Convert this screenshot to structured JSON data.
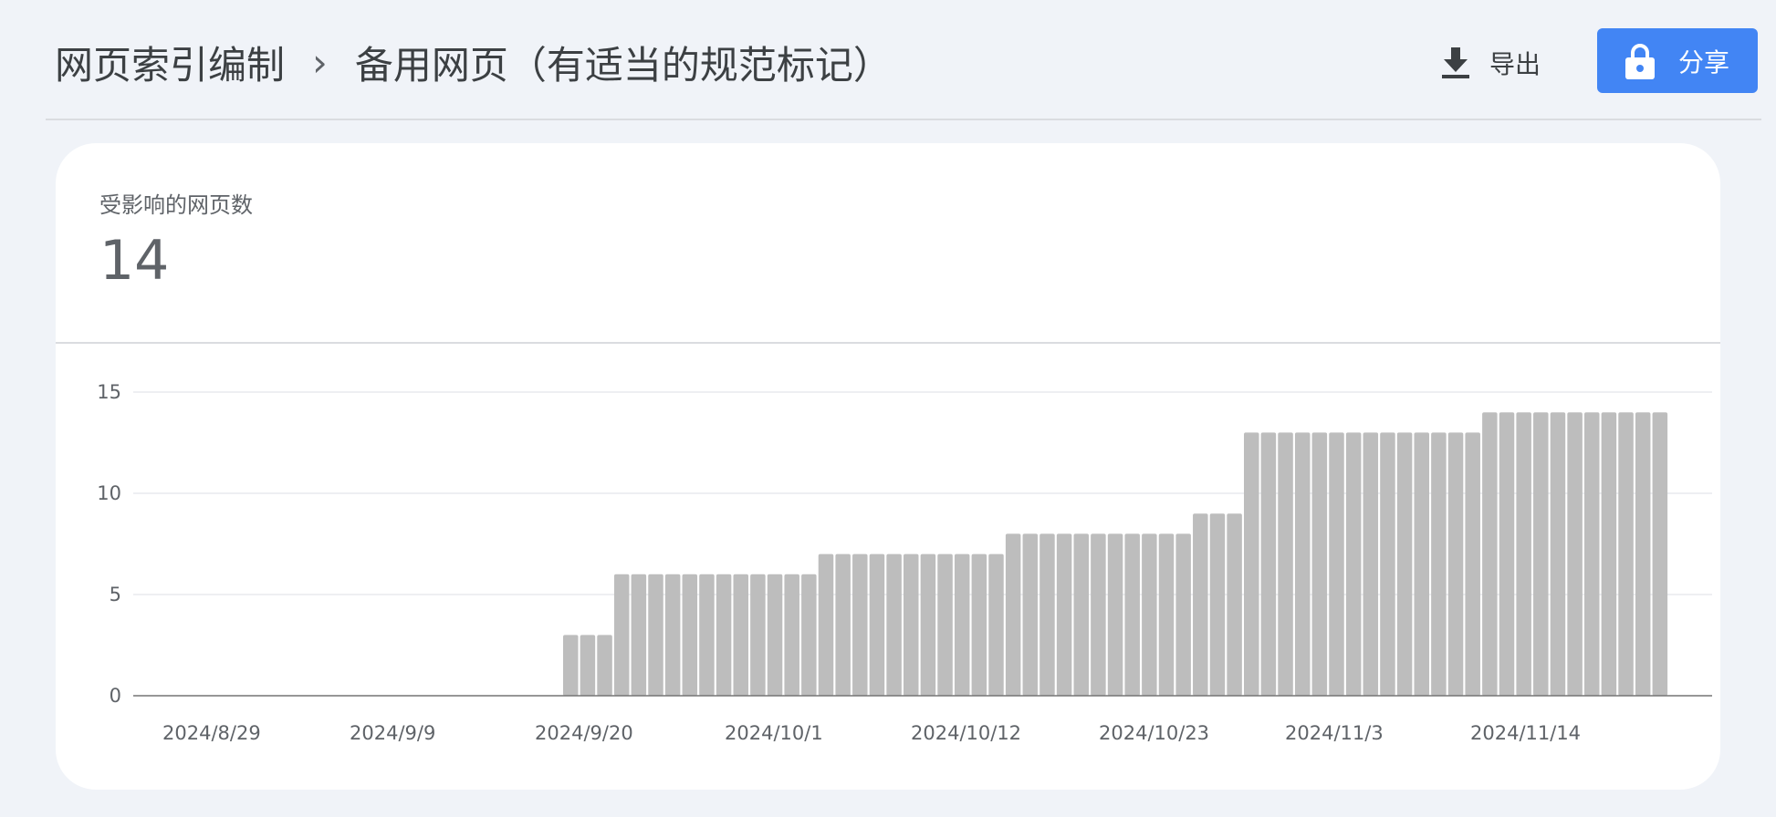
{
  "breadcrumb": {
    "parent": "网页索引编制",
    "separator": "›",
    "current": "备用网页（有适当的规范标记）"
  },
  "toolbar": {
    "export_label": "导出",
    "export_icon": "download-icon",
    "share_label": "分享",
    "share_icon": "lock-icon",
    "share_color": "#4285f4"
  },
  "metric": {
    "label": "受影响的网页数",
    "value": "14"
  },
  "chart_data": {
    "type": "bar",
    "title": "",
    "xlabel": "",
    "ylabel": "",
    "ylim": [
      0,
      15
    ],
    "yticks": [
      0,
      5,
      10,
      15
    ],
    "x_tick_labels": [
      "2024/8/29",
      "2024/9/9",
      "2024/9/20",
      "2024/10/1",
      "2024/10/12",
      "2024/10/23",
      "2024/11/3",
      "2024/11/14"
    ],
    "bar_color": "#bdbdbd",
    "start_date": "2024/8/29",
    "values": [
      0,
      0,
      0,
      0,
      0,
      0,
      0,
      0,
      0,
      0,
      0,
      0,
      0,
      0,
      0,
      0,
      0,
      0,
      0,
      0,
      0,
      0,
      0,
      0,
      0,
      0,
      3,
      3,
      3,
      6,
      6,
      6,
      6,
      6,
      6,
      6,
      6,
      6,
      6,
      6,
      6,
      7,
      7,
      7,
      7,
      7,
      7,
      7,
      7,
      7,
      7,
      7,
      8,
      8,
      8,
      8,
      8,
      8,
      8,
      8,
      8,
      8,
      8,
      9,
      9,
      9,
      13,
      13,
      13,
      13,
      13,
      13,
      13,
      13,
      13,
      13,
      13,
      13,
      13,
      13,
      14,
      14,
      14,
      14,
      14,
      14,
      14,
      14,
      14,
      14,
      14
    ]
  }
}
